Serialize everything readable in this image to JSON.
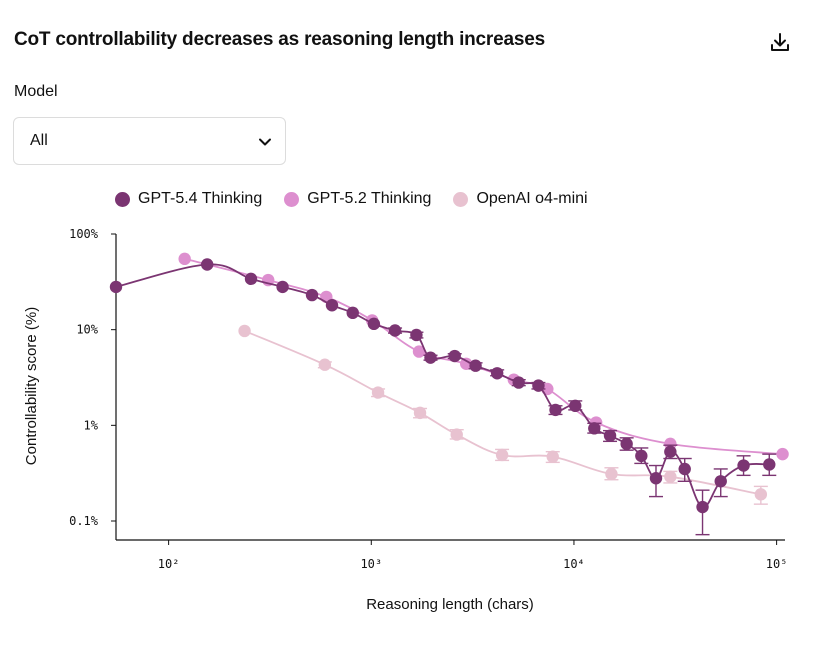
{
  "header": {
    "title": "CoT controllability decreases as reasoning length increases",
    "download_icon": "download-icon"
  },
  "filter": {
    "label": "Model",
    "selected": "All"
  },
  "chart_data": {
    "type": "line",
    "title": "CoT controllability decreases as reasoning length increases",
    "xlabel": "Reasoning length (chars)",
    "ylabel": "Controllability score (%)",
    "xscale": "log",
    "yscale": "log",
    "xlim": [
      55,
      110000
    ],
    "ylim": [
      0.0633,
      100
    ],
    "x_ticks": [
      {
        "value": 100,
        "label": "10²"
      },
      {
        "value": 1000,
        "label": "10³"
      },
      {
        "value": 10000,
        "label": "10⁴"
      },
      {
        "value": 100000,
        "label": "10⁵"
      }
    ],
    "y_ticks": [
      {
        "value": 100,
        "label": "100%"
      },
      {
        "value": 10,
        "label": "10%"
      },
      {
        "value": 1,
        "label": "1%"
      },
      {
        "value": 0.1,
        "label": "0.1%"
      }
    ],
    "legend_position": "top-left",
    "series": [
      {
        "name": "GPT-5.4 Thinking",
        "color": "#7b3572",
        "points": [
          {
            "x": 55,
            "y": 28
          },
          {
            "x": 155,
            "y": 48
          },
          {
            "x": 255,
            "y": 34
          },
          {
            "x": 365,
            "y": 28
          },
          {
            "x": 510,
            "y": 23
          },
          {
            "x": 640,
            "y": 18
          },
          {
            "x": 810,
            "y": 15
          },
          {
            "x": 1030,
            "y": 11.5
          },
          {
            "x": 1310,
            "y": 9.8,
            "err": [
              9.2,
              10.4
            ]
          },
          {
            "x": 1670,
            "y": 8.8,
            "err": [
              8.2,
              9.4
            ]
          },
          {
            "x": 1960,
            "y": 5.1,
            "err": [
              4.8,
              5.4
            ]
          },
          {
            "x": 2580,
            "y": 5.3,
            "err": [
              5.0,
              5.6
            ]
          },
          {
            "x": 3270,
            "y": 4.2,
            "err": [
              3.9,
              4.5
            ]
          },
          {
            "x": 4180,
            "y": 3.5,
            "err": [
              3.3,
              3.8
            ]
          },
          {
            "x": 5340,
            "y": 2.8,
            "err": [
              2.6,
              3.0
            ]
          },
          {
            "x": 6680,
            "y": 2.6,
            "err": [
              2.4,
              2.8
            ]
          },
          {
            "x": 8110,
            "y": 1.45,
            "err": [
              1.3,
              1.6
            ]
          },
          {
            "x": 10150,
            "y": 1.6,
            "err": [
              1.45,
              1.8
            ]
          },
          {
            "x": 12600,
            "y": 0.93,
            "err": [
              0.83,
              1.05
            ]
          },
          {
            "x": 15070,
            "y": 0.78,
            "err": [
              0.68,
              0.88
            ]
          },
          {
            "x": 18200,
            "y": 0.64,
            "err": [
              0.55,
              0.74
            ]
          },
          {
            "x": 21500,
            "y": 0.48,
            "err": [
              0.4,
              0.58
            ]
          },
          {
            "x": 25400,
            "y": 0.28,
            "err": [
              0.18,
              0.38
            ]
          },
          {
            "x": 29900,
            "y": 0.53,
            "err": [
              0.45,
              0.62
            ]
          },
          {
            "x": 35200,
            "y": 0.35,
            "err": [
              0.26,
              0.45
            ]
          },
          {
            "x": 43100,
            "y": 0.14,
            "err": [
              0.072,
              0.21
            ]
          },
          {
            "x": 53000,
            "y": 0.26,
            "err": [
              0.18,
              0.35
            ]
          },
          {
            "x": 68700,
            "y": 0.38,
            "err": [
              0.3,
              0.48
            ]
          },
          {
            "x": 92000,
            "y": 0.39,
            "err": [
              0.3,
              0.5
            ]
          }
        ]
      },
      {
        "name": "GPT-5.2 Thinking",
        "color": "#dd8fcf",
        "points": [
          {
            "x": 120,
            "y": 55
          },
          {
            "x": 310,
            "y": 33
          },
          {
            "x": 600,
            "y": 22
          },
          {
            "x": 1010,
            "y": 12.5
          },
          {
            "x": 1720,
            "y": 5.9
          },
          {
            "x": 2940,
            "y": 4.4
          },
          {
            "x": 5050,
            "y": 3.0
          },
          {
            "x": 7390,
            "y": 2.4
          },
          {
            "x": 12870,
            "y": 1.07
          },
          {
            "x": 29900,
            "y": 0.64
          },
          {
            "x": 107000,
            "y": 0.5
          }
        ]
      },
      {
        "name": "OpenAI o4-mini",
        "color": "#e8c2d0",
        "points": [
          {
            "x": 237,
            "y": 9.7
          },
          {
            "x": 590,
            "y": 4.3,
            "err": [
              4.0,
              4.6
            ]
          },
          {
            "x": 1080,
            "y": 2.2,
            "err": [
              2.0,
              2.4
            ]
          },
          {
            "x": 1740,
            "y": 1.35,
            "err": [
              1.2,
              1.5
            ]
          },
          {
            "x": 2640,
            "y": 0.8,
            "err": [
              0.72,
              0.9
            ]
          },
          {
            "x": 4420,
            "y": 0.49,
            "err": [
              0.43,
              0.56
            ]
          },
          {
            "x": 7860,
            "y": 0.47,
            "err": [
              0.41,
              0.53
            ]
          },
          {
            "x": 15310,
            "y": 0.31,
            "err": [
              0.27,
              0.36
            ]
          },
          {
            "x": 29900,
            "y": 0.29,
            "err": [
              0.25,
              0.33
            ]
          },
          {
            "x": 83600,
            "y": 0.19,
            "err": [
              0.15,
              0.23
            ]
          }
        ]
      }
    ]
  }
}
